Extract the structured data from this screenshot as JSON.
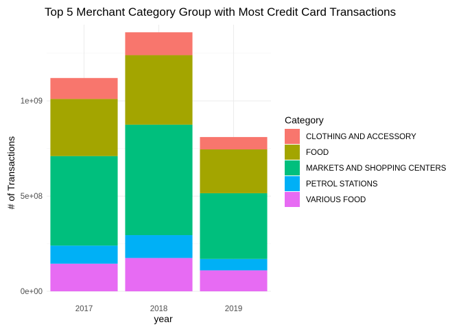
{
  "chart_data": {
    "type": "bar",
    "stacked": true,
    "title": "Top 5 Merchant Category Group with Most Credit Card Transactions",
    "xlabel": "year",
    "ylabel": "# of Transactions",
    "categories": [
      "2017",
      "2018",
      "2019"
    ],
    "ylim": [
      0,
      1400000000
    ],
    "yticks": [
      0,
      500000000,
      1000000000
    ],
    "ytick_labels": [
      "0e+00",
      "5e+08",
      "1e+09"
    ],
    "grid": true,
    "legend": {
      "title": "Category",
      "position": "right"
    },
    "series": [
      {
        "name": "CLOTHING AND ACCESSORY",
        "color": "#F8766D",
        "values": [
          110000000,
          120000000,
          65000000
        ]
      },
      {
        "name": "FOOD",
        "color": "#A3A500",
        "values": [
          300000000,
          365000000,
          230000000
        ]
      },
      {
        "name": "MARKETS AND SHOPPING CENTERS",
        "color": "#00BF7D",
        "values": [
          470000000,
          580000000,
          345000000
        ]
      },
      {
        "name": "PETROL STATIONS",
        "color": "#00B0F6",
        "values": [
          95000000,
          120000000,
          60000000
        ]
      },
      {
        "name": "VARIOUS FOOD",
        "color": "#E76BF3",
        "values": [
          145000000,
          175000000,
          110000000
        ]
      }
    ]
  }
}
